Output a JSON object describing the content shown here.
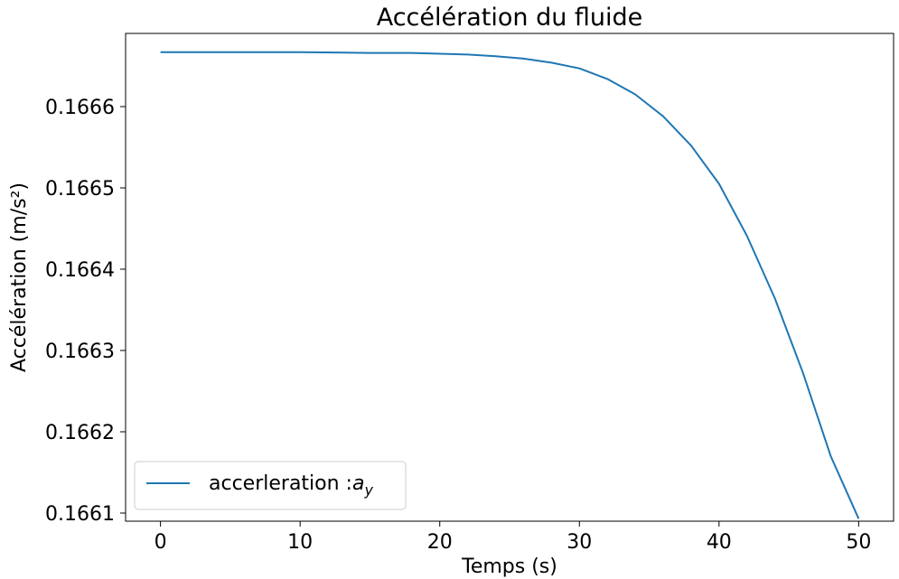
{
  "chart_data": {
    "type": "line",
    "title": "Accélération du fluide",
    "xlabel": "Temps (s)",
    "ylabel": "Accélération (m/s²)",
    "xlim": [
      -2.5,
      52.5
    ],
    "ylim": [
      0.16609,
      0.16669
    ],
    "xticks": [
      0,
      10,
      20,
      30,
      40,
      50
    ],
    "xtick_labels": [
      "0",
      "10",
      "20",
      "30",
      "40",
      "50"
    ],
    "yticks": [
      0.1661,
      0.1662,
      0.1663,
      0.1664,
      0.1665,
      0.1666
    ],
    "ytick_labels": [
      "0.1661",
      "0.1662",
      "0.1663",
      "0.1664",
      "0.1665",
      "0.1666"
    ],
    "grid": false,
    "legend_position": "lower-left",
    "series": [
      {
        "name": "accerleration :",
        "name_math_base": "a",
        "name_math_sub": "y",
        "color": "#1f77b4",
        "x": [
          0,
          5,
          10,
          15,
          18,
          20,
          22,
          24,
          26,
          28,
          30,
          32,
          34,
          36,
          38,
          40,
          42,
          44,
          46,
          48,
          50
        ],
        "y": [
          0.166667,
          0.166667,
          0.166667,
          0.166666,
          0.166666,
          0.166665,
          0.166664,
          0.166662,
          0.166659,
          0.166654,
          0.166647,
          0.166634,
          0.166615,
          0.166588,
          0.166552,
          0.166505,
          0.166441,
          0.166364,
          0.166273,
          0.16617,
          0.166093
        ]
      }
    ]
  }
}
